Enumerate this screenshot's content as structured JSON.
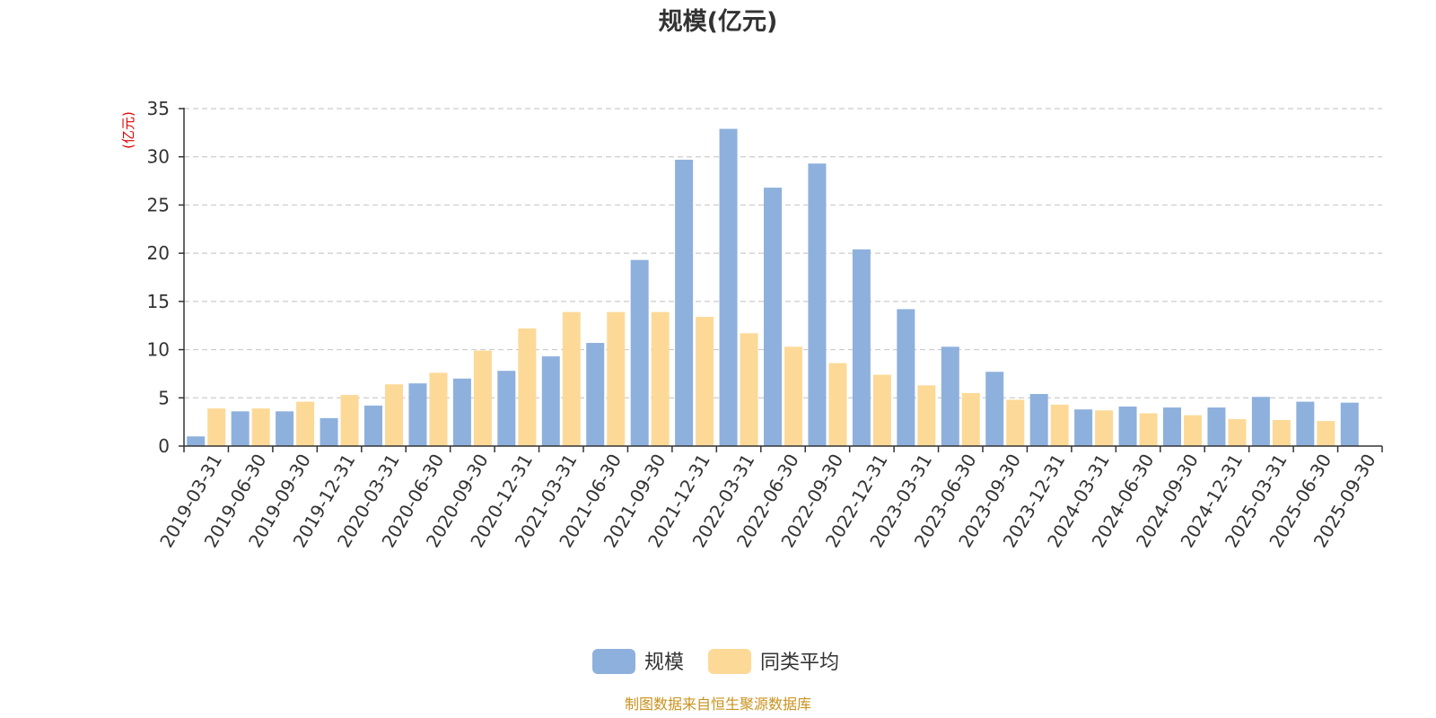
{
  "chart_data": {
    "type": "bar",
    "title": "规模(亿元)",
    "ylabel": "(亿元)",
    "ylim": [
      0,
      35
    ],
    "yticks": [
      0,
      5,
      10,
      15,
      20,
      25,
      30,
      35
    ],
    "grid": true,
    "legend_position": "bottom",
    "categories": [
      "2019-03-31",
      "2019-06-30",
      "2019-09-30",
      "2019-12-31",
      "2020-03-31",
      "2020-06-30",
      "2020-09-30",
      "2020-12-31",
      "2021-03-31",
      "2021-06-30",
      "2021-09-30",
      "2021-12-31",
      "2022-03-31",
      "2022-06-30",
      "2022-09-30",
      "2022-12-31",
      "2023-03-31",
      "2023-06-30",
      "2023-09-30",
      "2023-12-31",
      "2024-03-31",
      "2024-06-30",
      "2024-09-30",
      "2024-12-31",
      "2025-03-31",
      "2025-06-30",
      "2025-09-30"
    ],
    "series": [
      {
        "name": "规模",
        "color": "#8eb0dd",
        "values": [
          1.0,
          3.6,
          3.6,
          2.9,
          4.2,
          6.5,
          7.0,
          7.8,
          9.3,
          10.7,
          19.3,
          29.7,
          32.9,
          26.8,
          29.3,
          20.4,
          14.2,
          10.3,
          7.7,
          5.4,
          3.8,
          4.1,
          4.0,
          4.0,
          5.1,
          4.6,
          4.5
        ]
      },
      {
        "name": "同类平均",
        "color": "#fdd998",
        "values": [
          3.9,
          3.9,
          4.6,
          5.3,
          6.4,
          7.6,
          9.9,
          12.2,
          13.9,
          13.9,
          13.9,
          13.4,
          11.7,
          10.3,
          8.6,
          7.4,
          6.3,
          5.5,
          4.8,
          4.3,
          3.7,
          3.4,
          3.2,
          2.8,
          2.7,
          2.6,
          null
        ]
      }
    ]
  },
  "footer": {
    "source": "制图数据来自恒生聚源数据库"
  }
}
